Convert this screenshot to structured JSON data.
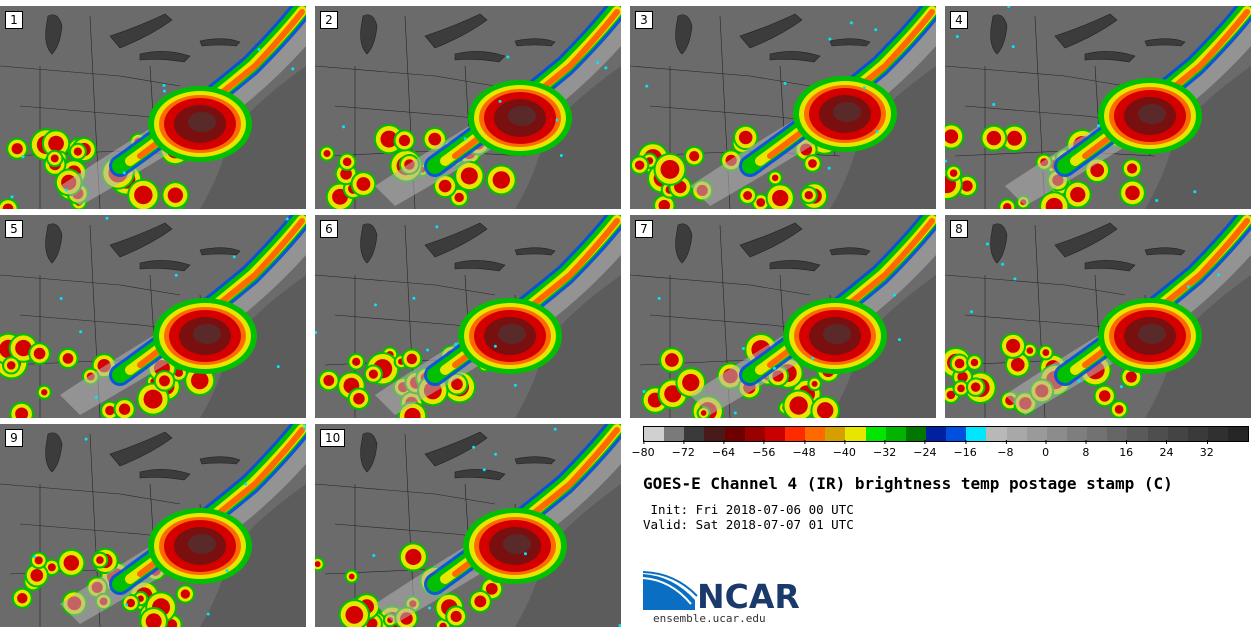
{
  "panels": [
    "1",
    "2",
    "3",
    "4",
    "5",
    "6",
    "7",
    "8",
    "9",
    "10"
  ],
  "colorbar": {
    "colors": [
      "#d0d0d0",
      "#7a7a7a",
      "#3a3a3a",
      "#4a1a1a",
      "#6e0000",
      "#9a0000",
      "#c80000",
      "#ff2a00",
      "#ff6a00",
      "#d4a000",
      "#e6e600",
      "#00e600",
      "#00b400",
      "#007800",
      "#0020a0",
      "#0050e0",
      "#00e6ff",
      "#b8b8b8",
      "#a8a8a8",
      "#9a9a9a",
      "#8c8c8c",
      "#7e7e7e",
      "#727272",
      "#666666",
      "#5a5a5a",
      "#4e4e4e",
      "#444444",
      "#3a3a3a",
      "#303030",
      "#262626"
    ],
    "tick_labels": [
      "−80",
      "−72",
      "−64",
      "−56",
      "−48",
      "−40",
      "−32",
      "−24",
      "−16",
      "−8",
      "0",
      "8",
      "16",
      "24",
      "32"
    ]
  },
  "title": "GOES-E Channel 4 (IR) brightness temp postage stamp (C)",
  "init_line": " Init: Fri 2018-07-06 00 UTC",
  "valid_line": "Valid: Sat 2018-07-07 01 UTC",
  "logo": {
    "name": "NCAR",
    "url": "ensemble.ucar.edu"
  },
  "map_colors": {
    "background": "#6b6b6b",
    "ocean": "#5c5c5c",
    "lake": "#3c3c3c",
    "red": "#d40000",
    "darkred": "#7a0f0f",
    "core": "#5a2a2a",
    "orange": "#ff6a00",
    "yellow": "#e6e600",
    "green": "#00c000",
    "blue": "#0050e0",
    "cyan": "#00e6ff",
    "cloudgray": "#b4b4b4"
  }
}
